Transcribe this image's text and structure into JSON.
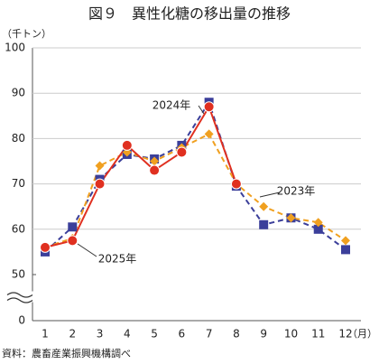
{
  "chart_data": {
    "type": "line",
    "title": "図９　異性化糖の移出量の推移",
    "y_unit": "（千トン）",
    "x_unit": "（月）",
    "source": "資料：農畜産業振興機構調べ",
    "categories": [
      "1",
      "2",
      "3",
      "4",
      "5",
      "6",
      "7",
      "8",
      "9",
      "10",
      "11",
      "12"
    ],
    "ylim": [
      0,
      100
    ],
    "yticks": [
      0,
      50,
      60,
      70,
      80,
      90,
      100
    ],
    "ybreak": [
      0,
      50
    ],
    "grid": true,
    "series": [
      {
        "name": "2024年",
        "color": "#3b3f9a",
        "dash": true,
        "marker": "square",
        "values": [
          55,
          60.5,
          71,
          76.5,
          75.5,
          78.5,
          88,
          69.5,
          61,
          62.5,
          60,
          55.5
        ]
      },
      {
        "name": "2023年",
        "color": "#f0a020",
        "dash": true,
        "marker": "diamond",
        "values": [
          56,
          58,
          74,
          77,
          75,
          78,
          81,
          70,
          65,
          62.5,
          61.5,
          57.5
        ]
      },
      {
        "name": "2025年",
        "color": "#e03020",
        "dash": false,
        "marker": "circle",
        "values": [
          56,
          57.5,
          70,
          78.5,
          73,
          77,
          87,
          70,
          null,
          null,
          null,
          null
        ]
      }
    ]
  }
}
